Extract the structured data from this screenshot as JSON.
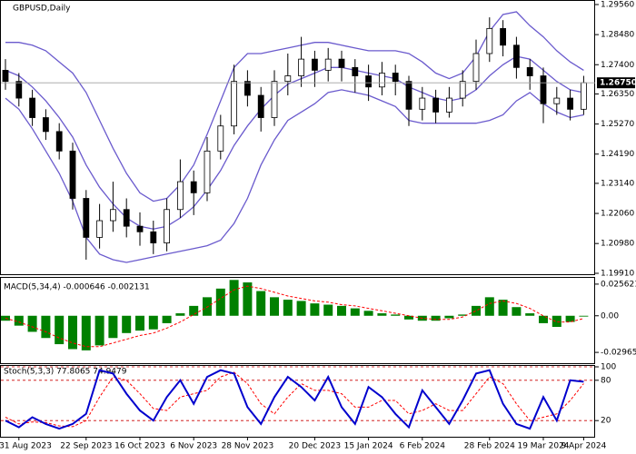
{
  "chart_data": [
    {
      "type": "candlestick",
      "title": "GBPUSD,Daily",
      "color": "#000000",
      "ohlc": [
        [
          1.272,
          1.276,
          1.265,
          1.268
        ],
        [
          1.268,
          1.271,
          1.259,
          1.262
        ],
        [
          1.262,
          1.265,
          1.252,
          1.255
        ],
        [
          1.255,
          1.258,
          1.247,
          1.25
        ],
        [
          1.25,
          1.253,
          1.24,
          1.243
        ],
        [
          1.243,
          1.246,
          1.222,
          1.226
        ],
        [
          1.226,
          1.229,
          1.204,
          1.212
        ],
        [
          1.212,
          1.224,
          1.208,
          1.218
        ],
        [
          1.218,
          1.232,
          1.214,
          1.222
        ],
        [
          1.222,
          1.226,
          1.212,
          1.216
        ],
        [
          1.216,
          1.221,
          1.209,
          1.214
        ],
        [
          1.214,
          1.218,
          1.206,
          1.21
        ],
        [
          1.21,
          1.226,
          1.207,
          1.222
        ],
        [
          1.222,
          1.24,
          1.219,
          1.232
        ],
        [
          1.232,
          1.236,
          1.22,
          1.228
        ],
        [
          1.228,
          1.248,
          1.225,
          1.243
        ],
        [
          1.243,
          1.256,
          1.24,
          1.252
        ],
        [
          1.252,
          1.274,
          1.249,
          1.268
        ],
        [
          1.268,
          1.272,
          1.259,
          1.263
        ],
        [
          1.263,
          1.266,
          1.25,
          1.255
        ],
        [
          1.255,
          1.272,
          1.252,
          1.268
        ],
        [
          1.268,
          1.278,
          1.263,
          1.27
        ],
        [
          1.27,
          1.284,
          1.266,
          1.276
        ],
        [
          1.276,
          1.279,
          1.266,
          1.272
        ],
        [
          1.272,
          1.28,
          1.268,
          1.276
        ],
        [
          1.276,
          1.279,
          1.268,
          1.273
        ],
        [
          1.273,
          1.276,
          1.264,
          1.27
        ],
        [
          1.27,
          1.274,
          1.261,
          1.266
        ],
        [
          1.266,
          1.275,
          1.263,
          1.271
        ],
        [
          1.271,
          1.274,
          1.263,
          1.268
        ],
        [
          1.268,
          1.27,
          1.252,
          1.258
        ],
        [
          1.258,
          1.266,
          1.254,
          1.262
        ],
        [
          1.262,
          1.265,
          1.253,
          1.257
        ],
        [
          1.257,
          1.266,
          1.255,
          1.262
        ],
        [
          1.262,
          1.272,
          1.259,
          1.268
        ],
        [
          1.268,
          1.283,
          1.265,
          1.278
        ],
        [
          1.278,
          1.291,
          1.275,
          1.287
        ],
        [
          1.287,
          1.29,
          1.277,
          1.281
        ],
        [
          1.281,
          1.284,
          1.269,
          1.273
        ],
        [
          1.273,
          1.276,
          1.265,
          1.27
        ],
        [
          1.27,
          1.273,
          1.253,
          1.26
        ],
        [
          1.26,
          1.266,
          1.256,
          1.262
        ],
        [
          1.262,
          1.265,
          1.254,
          1.258
        ],
        [
          1.258,
          1.27,
          1.256,
          1.2675
        ]
      ],
      "bands": {
        "color": "#6a5acd",
        "upper": [
          1.282,
          1.282,
          1.281,
          1.279,
          1.275,
          1.271,
          1.264,
          1.254,
          1.244,
          1.235,
          1.228,
          1.225,
          1.226,
          1.231,
          1.238,
          1.249,
          1.261,
          1.273,
          1.278,
          1.278,
          1.279,
          1.28,
          1.281,
          1.282,
          1.282,
          1.281,
          1.28,
          1.279,
          1.279,
          1.279,
          1.278,
          1.275,
          1.271,
          1.269,
          1.271,
          1.277,
          1.286,
          1.292,
          1.293,
          1.288,
          1.284,
          1.279,
          1.275,
          1.272
        ],
        "middle": [
          1.272,
          1.27,
          1.266,
          1.261,
          1.255,
          1.248,
          1.238,
          1.23,
          1.224,
          1.219,
          1.216,
          1.215,
          1.216,
          1.219,
          1.223,
          1.229,
          1.236,
          1.245,
          1.252,
          1.258,
          1.263,
          1.267,
          1.269,
          1.271,
          1.273,
          1.273,
          1.272,
          1.271,
          1.27,
          1.269,
          1.266,
          1.264,
          1.262,
          1.261,
          1.262,
          1.265,
          1.27,
          1.274,
          1.277,
          1.276,
          1.272,
          1.268,
          1.265,
          1.264
        ],
        "lower": [
          1.262,
          1.258,
          1.251,
          1.243,
          1.235,
          1.225,
          1.212,
          1.206,
          1.204,
          1.203,
          1.204,
          1.205,
          1.206,
          1.207,
          1.208,
          1.209,
          1.211,
          1.217,
          1.226,
          1.238,
          1.247,
          1.254,
          1.257,
          1.26,
          1.264,
          1.265,
          1.264,
          1.263,
          1.261,
          1.259,
          1.254,
          1.253,
          1.253,
          1.253,
          1.253,
          1.253,
          1.254,
          1.256,
          1.261,
          1.264,
          1.26,
          1.257,
          1.255,
          1.256
        ]
      },
      "ylim": [
        1.1991,
        1.2956
      ],
      "yticks": [
        {
          "value": 1.2956,
          "label": "1.29560"
        },
        {
          "value": 1.2848,
          "label": "1.28480"
        },
        {
          "value": 1.274,
          "label": "1.27400"
        },
        {
          "value": 1.2635,
          "label": "1.26350"
        },
        {
          "value": 1.2527,
          "label": "1.25270"
        },
        {
          "value": 1.2419,
          "label": "1.24190"
        },
        {
          "value": 1.2314,
          "label": "1.23140"
        },
        {
          "value": 1.2206,
          "label": "1.22060"
        },
        {
          "value": 1.2098,
          "label": "1.20980"
        },
        {
          "value": 1.1991,
          "label": "1.19910"
        }
      ],
      "last_price": {
        "value": 1.2675,
        "label": "1.26750"
      }
    },
    {
      "type": "bar",
      "title": "MACD(5,34,4) -0.000646 -0.002131",
      "series": [
        {
          "color": "#008000",
          "values": [
            -0.004,
            -0.008,
            -0.013,
            -0.018,
            -0.023,
            -0.027,
            -0.028,
            -0.024,
            -0.018,
            -0.014,
            -0.012,
            -0.011,
            -0.006,
            0.002,
            0.008,
            0.015,
            0.022,
            0.029,
            0.027,
            0.02,
            0.015,
            0.013,
            0.012,
            0.01,
            0.009,
            0.008,
            0.006,
            0.004,
            0.002,
            0.001,
            -0.003,
            -0.004,
            -0.004,
            -0.002,
            0.001,
            0.008,
            0.015,
            0.013,
            0.007,
            0.002,
            -0.006,
            -0.009,
            -0.005,
            -0.000646
          ]
        },
        {
          "color": "#ff0000",
          "values": [
            -0.002,
            -0.005,
            -0.009,
            -0.013,
            -0.018,
            -0.022,
            -0.025,
            -0.025,
            -0.022,
            -0.019,
            -0.016,
            -0.014,
            -0.01,
            -0.005,
            0.001,
            0.007,
            0.014,
            0.021,
            0.024,
            0.022,
            0.019,
            0.016,
            0.014,
            0.012,
            0.011,
            0.009,
            0.008,
            0.006,
            0.004,
            0.002,
            0,
            -0.002,
            -0.003,
            -0.003,
            -0.001,
            0.004,
            0.01,
            0.012,
            0.01,
            0.006,
            0,
            -0.005,
            -0.005,
            -0.002131
          ]
        }
      ],
      "ylim": [
        -0.0384,
        0.0307
      ],
      "yticks": [
        0.025621,
        {
          "value": 0,
          "label": "0.00"
        },
        -0.02965
      ]
    },
    {
      "type": "line",
      "title": "Stoch(5,3,3) 77.8065 74.9479",
      "series": [
        {
          "color": "#0000cd",
          "values": [
            20,
            10,
            25,
            15,
            8,
            15,
            30,
            95,
            90,
            60,
            35,
            20,
            55,
            80,
            45,
            85,
            95,
            90,
            40,
            15,
            55,
            85,
            70,
            50,
            85,
            40,
            15,
            70,
            55,
            30,
            10,
            65,
            40,
            15,
            50,
            90,
            95,
            45,
            15,
            8,
            55,
            20,
            80,
            77.8065
          ]
        },
        {
          "color": "#ff0000",
          "values": [
            25,
            15,
            18,
            17,
            12,
            11,
            20,
            55,
            85,
            80,
            60,
            38,
            35,
            55,
            60,
            65,
            85,
            92,
            75,
            45,
            30,
            55,
            75,
            65,
            65,
            60,
            40,
            40,
            50,
            50,
            30,
            35,
            45,
            35,
            35,
            60,
            85,
            75,
            45,
            20,
            25,
            30,
            50,
            74.9479
          ]
        }
      ],
      "ylim": [
        0,
        100
      ],
      "yticks": [
        100,
        80,
        20
      ],
      "categories": [
        null,
        "31 Aug 2023",
        null,
        null,
        null,
        null,
        "22 Sep 2023",
        null,
        null,
        null,
        "16 Oct 2023",
        null,
        null,
        null,
        "6 Nov 2023",
        null,
        null,
        null,
        "28 Nov 2023",
        null,
        null,
        null,
        null,
        "20 Dec 2023",
        null,
        null,
        null,
        "15 Jan 2024",
        null,
        null,
        null,
        "6 Feb 2024",
        null,
        null,
        null,
        null,
        "28 Feb 2024",
        null,
        null,
        null,
        "19 Mar 2024",
        null,
        null,
        "9 Apr 2024"
      ]
    }
  ]
}
